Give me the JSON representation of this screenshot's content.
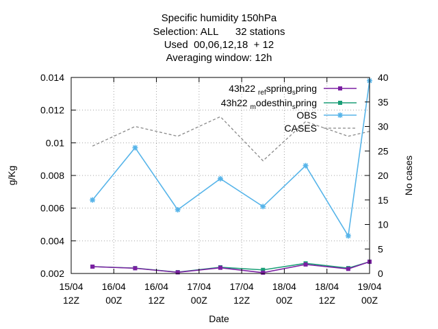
{
  "chart_data": {
    "type": "line",
    "title_lines": [
      "Specific humidity 150hPa",
      "Selection: ALL      32 stations",
      "Used  00,06,12,18  + 12",
      "Averaging window: 12h"
    ],
    "xlabel": "Date",
    "ylabel": "g/Kg",
    "y2label": "No cases",
    "x_ticks": [
      {
        "x": 0,
        "line1": "15/04",
        "line2": "12Z"
      },
      {
        "x": 12,
        "line1": "16/04",
        "line2": "00Z"
      },
      {
        "x": 24,
        "line1": "16/04",
        "line2": "12Z"
      },
      {
        "x": 36,
        "line1": "17/04",
        "line2": "00Z"
      },
      {
        "x": 48,
        "line1": "17/04",
        "line2": "12Z"
      },
      {
        "x": 60,
        "line1": "18/04",
        "line2": "00Z"
      },
      {
        "x": 72,
        "line1": "18/04",
        "line2": "12Z"
      },
      {
        "x": 84,
        "line1": "19/04",
        "line2": "00Z"
      }
    ],
    "xlim": [
      0,
      84
    ],
    "ylim": [
      0.002,
      0.014
    ],
    "y_ticks": [
      "0.002",
      "0.004",
      "0.006",
      "0.008",
      "0.01",
      "0.012",
      "0.014"
    ],
    "y2lim": [
      0,
      40
    ],
    "y2_ticks": [
      "0",
      "5",
      "10",
      "15",
      "20",
      "25",
      "30",
      "35",
      "40"
    ],
    "grid": true,
    "legend_position": "top-right",
    "x": [
      6,
      18,
      30,
      42,
      54,
      66,
      78,
      84
    ],
    "series": [
      {
        "name": "43h22 ref_spring",
        "legend_main": "43h22 ",
        "legend_sub": "ref",
        "legend_rest": "spring",
        "legend_sub2": "s",
        "color": "#7b1fa2",
        "axis": "y",
        "style": "solid",
        "marker": "filled-square",
        "values": [
          0.00242,
          0.00232,
          0.00207,
          0.00235,
          0.00205,
          0.00255,
          0.00228,
          0.00272
        ]
      },
      {
        "name": "43h22 modesthin_spring",
        "legend_main": "43h22 ",
        "legend_sub": "m",
        "legend_rest": "odesthin",
        "legend_sub2": "s",
        "legend_tail": "pring",
        "color": "#1a9e77",
        "axis": "y",
        "style": "solid",
        "marker": "filled-square",
        "values": [
          0.00242,
          0.00233,
          0.00208,
          0.00238,
          0.00222,
          0.00262,
          0.00233,
          0.00272
        ]
      },
      {
        "name": "OBS",
        "color": "#56b4e9",
        "axis": "y",
        "style": "solid",
        "marker": "star",
        "values": [
          0.0065,
          0.0097,
          0.0059,
          0.0078,
          0.0061,
          0.0086,
          0.0043,
          0.0138
        ]
      },
      {
        "name": "CASES",
        "color": "#888888",
        "axis": "y2",
        "style": "dashed",
        "marker": "none",
        "values": [
          26,
          30,
          28,
          32,
          23,
          31,
          28,
          29
        ]
      }
    ]
  }
}
